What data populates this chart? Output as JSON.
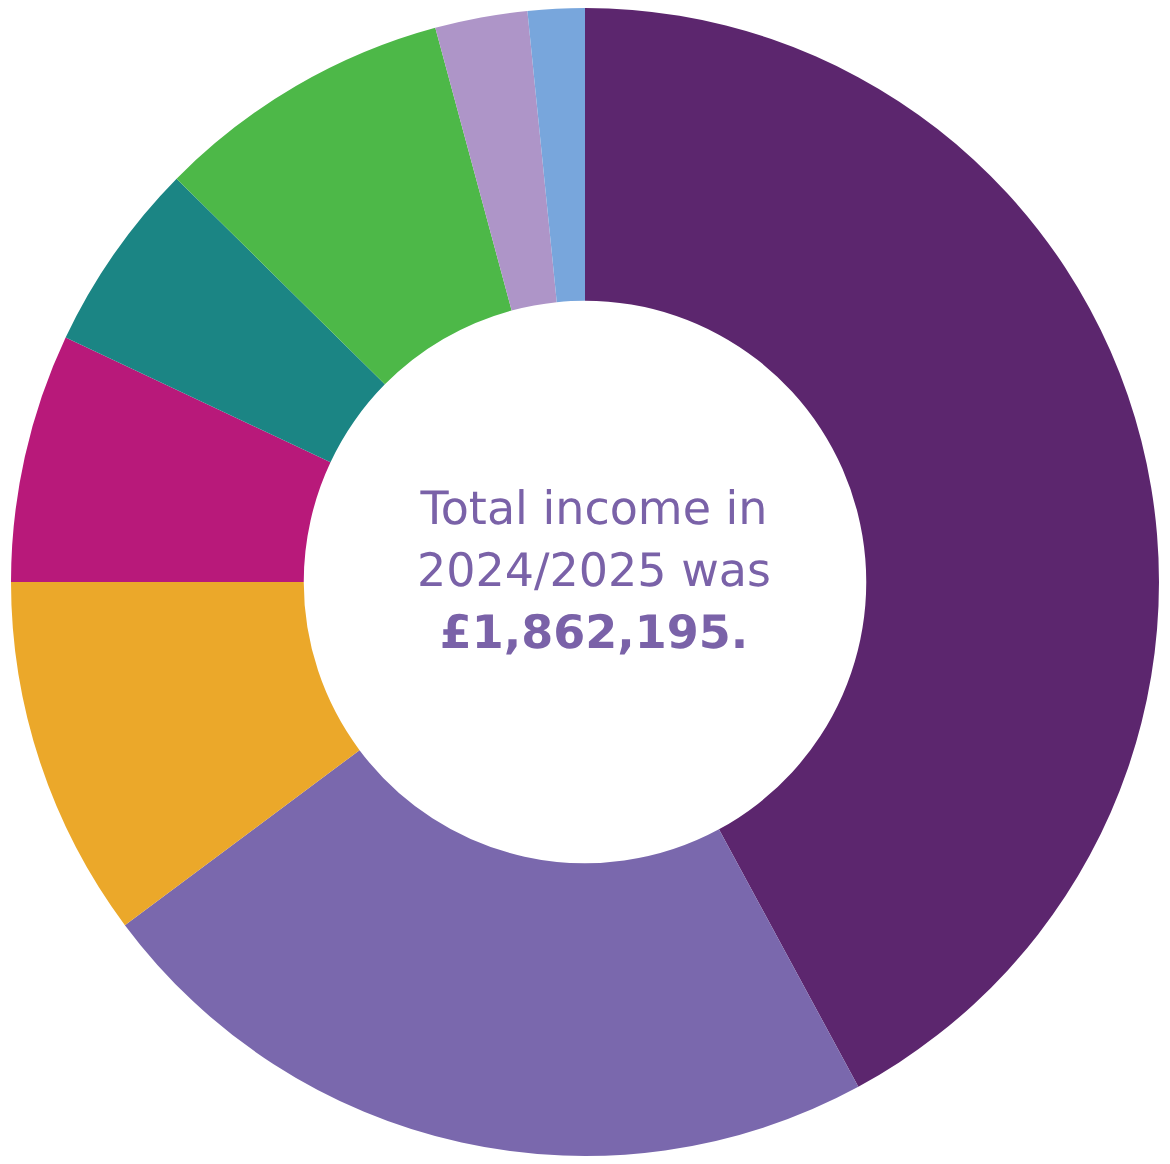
{
  "chart_data": {
    "type": "donut",
    "categories": [
      null,
      null,
      null,
      null,
      null,
      null,
      null,
      null
    ],
    "values": [
      42.1,
      22.7,
      10.2,
      7.0,
      5.4,
      8.4,
      2.6,
      1.6
    ],
    "colors": [
      "#5c266e",
      "#7a68ad",
      "#eba82a",
      "#b8197a",
      "#1b8584",
      "#4db848",
      "#ae95c8",
      "#78a6dc"
    ],
    "annotations": [
      "Total income in 2024/2025 was",
      "£1,862,195."
    ],
    "legend": false
  }
}
